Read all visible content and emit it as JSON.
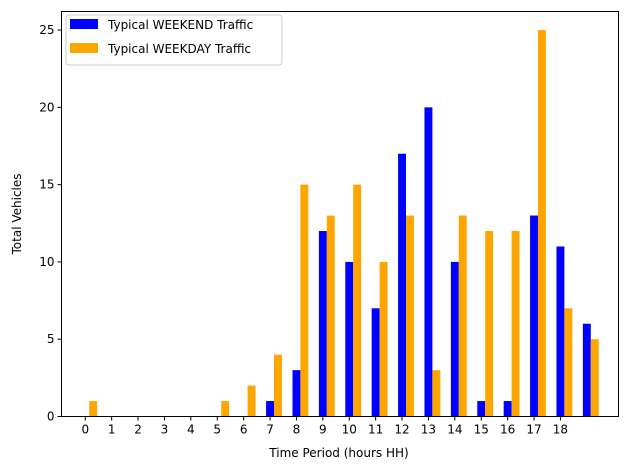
{
  "chart_data": {
    "type": "bar",
    "xlabel": "Time Period (hours HH)",
    "ylabel": "Total Vehicles",
    "x_tick_labels": [
      "0",
      "1",
      "2",
      "3",
      "4",
      "5",
      "6",
      "7",
      "8",
      "9",
      "10",
      "11",
      "12",
      "13",
      "14",
      "15",
      "16",
      "17",
      "18"
    ],
    "y_ticks": [
      0,
      5,
      10,
      15,
      20,
      25
    ],
    "xlim": [
      -0.9,
      20.2
    ],
    "ylim": [
      0,
      26.2
    ],
    "legend_position": "upper-left",
    "bar_width": 0.3,
    "series": [
      {
        "name": "Typical WEEKEND Traffic",
        "color": "#0000ff",
        "x": [
          0,
          1,
          2,
          3,
          4,
          5,
          6,
          7,
          8,
          9,
          10,
          11,
          12,
          13,
          14,
          15,
          16,
          17,
          18,
          19
        ],
        "values": [
          0,
          0,
          0,
          0,
          0,
          0,
          0,
          1,
          3,
          12,
          10,
          7,
          17,
          20,
          10,
          1,
          1,
          13,
          11,
          6
        ]
      },
      {
        "name": "Typical WEEKDAY Traffic",
        "color": "#ffa500",
        "x": [
          0,
          1,
          2,
          3,
          4,
          5,
          6,
          7,
          8,
          9,
          10,
          11,
          12,
          13,
          14,
          15,
          16,
          17,
          18,
          19
        ],
        "values": [
          1,
          0,
          0,
          0,
          0,
          1,
          2,
          4,
          15,
          13,
          15,
          10,
          13,
          3,
          13,
          12,
          12,
          25,
          7,
          5
        ]
      }
    ]
  }
}
